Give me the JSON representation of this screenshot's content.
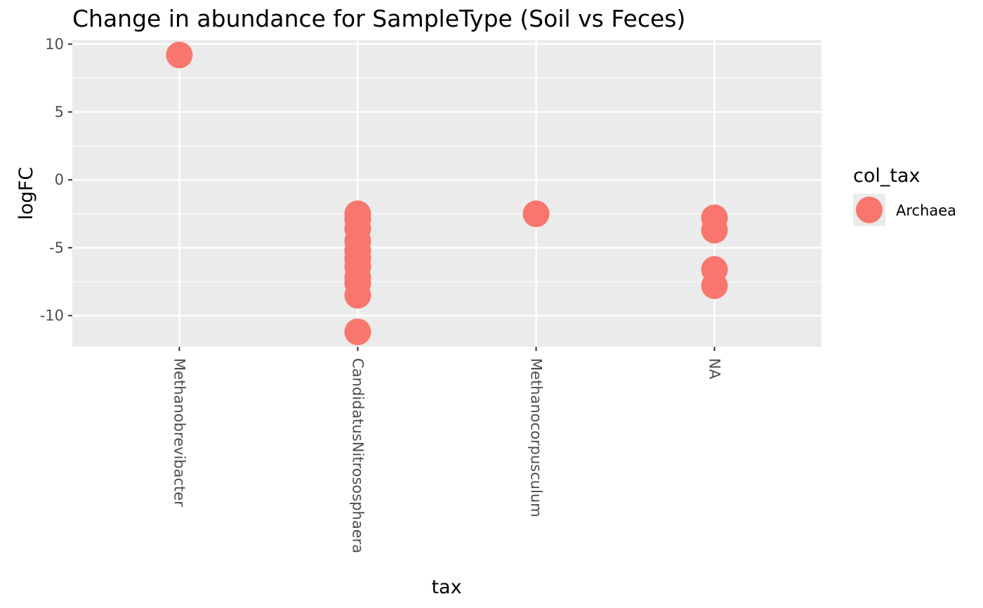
{
  "chart_data": {
    "type": "scatter",
    "title": "Change in abundance for SampleType (Soil vs Feces)",
    "xlabel": "tax",
    "ylabel": "logFC",
    "categories": [
      "Methanobrevibacter",
      "CandidatusNitrososphaera",
      "Methanocorpusculum",
      "NA"
    ],
    "yticks": [
      10,
      5,
      0,
      -5,
      -10
    ],
    "ytick_labels": [
      "10",
      "5",
      "0",
      "-5",
      "-10"
    ],
    "ylim": [
      -12.3,
      10.3
    ],
    "grid": true,
    "legend": {
      "title": "col_tax",
      "position": "right",
      "entries": [
        {
          "label": "Archaea",
          "color": "#F8766D"
        }
      ]
    },
    "series": [
      {
        "name": "Archaea",
        "color": "#F8766D",
        "points": [
          {
            "x": "Methanobrevibacter",
            "y": 9.2
          },
          {
            "x": "CandidatusNitrososphaera",
            "y": -2.5
          },
          {
            "x": "CandidatusNitrososphaera",
            "y": -2.9
          },
          {
            "x": "CandidatusNitrososphaera",
            "y": -3.6
          },
          {
            "x": "CandidatusNitrososphaera",
            "y": -4.5
          },
          {
            "x": "CandidatusNitrososphaera",
            "y": -5.2
          },
          {
            "x": "CandidatusNitrososphaera",
            "y": -5.8
          },
          {
            "x": "CandidatusNitrososphaera",
            "y": -6.4
          },
          {
            "x": "CandidatusNitrososphaera",
            "y": -7.2
          },
          {
            "x": "CandidatusNitrososphaera",
            "y": -7.6
          },
          {
            "x": "CandidatusNitrososphaera",
            "y": -8.5
          },
          {
            "x": "CandidatusNitrososphaera",
            "y": -11.2
          },
          {
            "x": "Methanocorpusculum",
            "y": -2.5
          },
          {
            "x": "NA",
            "y": -2.8
          },
          {
            "x": "NA",
            "y": -3.7
          },
          {
            "x": "NA",
            "y": -6.6
          },
          {
            "x": "NA",
            "y": -7.8
          }
        ]
      }
    ]
  }
}
